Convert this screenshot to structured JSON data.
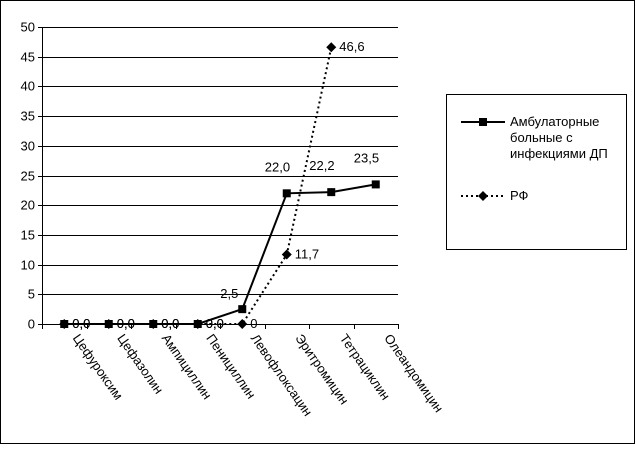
{
  "chart_data": {
    "type": "line",
    "categories": [
      "Цефуроксим",
      "Цефазолин",
      "Ампициллин",
      "Пенициллин",
      "Левофлоксацин",
      "Эритромицин",
      "Тетрациклин",
      "Олеандомицин"
    ],
    "ylim": [
      0,
      50
    ],
    "yticks": [
      0,
      5,
      10,
      15,
      20,
      25,
      30,
      35,
      40,
      45,
      50
    ],
    "ytick_labels": [
      "0",
      "5",
      "10",
      "15",
      "20",
      "25",
      "30",
      "35",
      "40",
      "45",
      "50"
    ],
    "grid": true,
    "legend_position": "right",
    "series": [
      {
        "name": "Амбулаторные больные с инфекциями ДП",
        "name_lines": [
          "Амбулаторные",
          "больные с",
          "инфекциями ДП"
        ],
        "style": "solid",
        "marker": "square",
        "color": "#000000",
        "values": [
          0,
          0,
          0,
          0,
          2.5,
          22.0,
          22.2,
          23.5
        ],
        "labels": [
          "0,0",
          "0,0",
          "0,0",
          "0,0",
          "2,5",
          "22,0",
          "22,2",
          "23,5"
        ]
      },
      {
        "name": "РФ",
        "name_lines": [
          "РФ"
        ],
        "style": "dotted",
        "marker": "diamond",
        "color": "#000000",
        "values": [
          0,
          0,
          0,
          0,
          0,
          11.7,
          46.6,
          null
        ],
        "labels": [
          "0,0",
          "0,0",
          "0,0",
          "0,0",
          "0",
          "11,7",
          "46,6",
          ""
        ]
      }
    ]
  }
}
